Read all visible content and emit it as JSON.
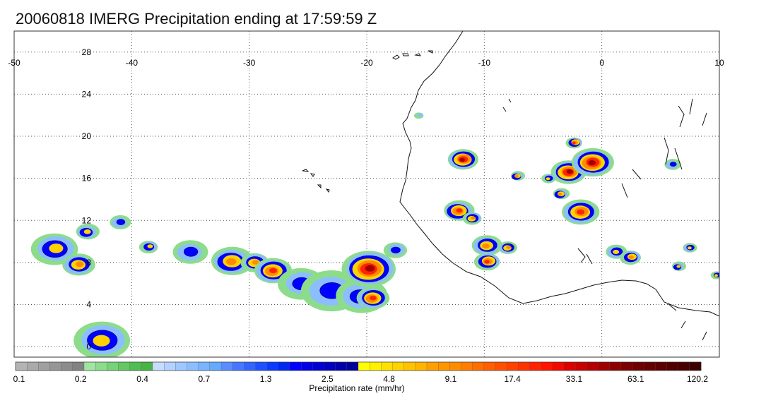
{
  "title": "20060818 IMERG Precipitation ending at 17:59:59 Z",
  "map": {
    "lon_range": [
      -50,
      10
    ],
    "lat_range": [
      -1,
      30
    ],
    "lon_ticks": [
      -50,
      -40,
      -30,
      -20,
      -10,
      0,
      10
    ],
    "lon_tick_labels": [
      "-50",
      "-40",
      "-30",
      "-20",
      "-10",
      "0",
      "10"
    ],
    "lat_ticks": [
      0,
      4,
      8,
      12,
      16,
      20,
      24,
      28
    ],
    "lat_tick_labels": [
      "0",
      "4",
      "8",
      "12",
      "16",
      "20",
      "24",
      "28"
    ],
    "grid": true
  },
  "colorbar": {
    "label": "Precipitation rate (mm/hr)",
    "tick_labels": [
      "0.1",
      "0.2",
      "0.4",
      "0.7",
      "1.3",
      "2.5",
      "4.8",
      "9.1",
      "17.4",
      "33.1",
      "63.1",
      "120.2"
    ],
    "colors": [
      "#b4b4b4",
      "#aaaaaa",
      "#a0a0a0",
      "#969696",
      "#8c8c8c",
      "#828282",
      "#a0e6a0",
      "#8cdc8c",
      "#78d278",
      "#64c864",
      "#50be50",
      "#46b446",
      "#c8dcff",
      "#b4d2ff",
      "#a0c8ff",
      "#8cbeff",
      "#78b4ff",
      "#64aaff",
      "#5a8cff",
      "#4678ff",
      "#3264ff",
      "#1e50ff",
      "#0a3cff",
      "#0028f0",
      "#0000ff",
      "#0000e6",
      "#0000d2",
      "#0000be",
      "#0000aa",
      "#00009b",
      "#ffff00",
      "#fff000",
      "#ffe100",
      "#ffd200",
      "#ffc300",
      "#ffb400",
      "#ffa000",
      "#ff9600",
      "#ff8c00",
      "#ff7d00",
      "#ff6e00",
      "#ff5f00",
      "#ff5000",
      "#ff4100",
      "#ff3200",
      "#ff2300",
      "#ff1400",
      "#f00a00",
      "#dc0000",
      "#c80000",
      "#b40000",
      "#a00000",
      "#8c0000",
      "#7d0000",
      "#6e0000",
      "#640000",
      "#5a0000",
      "#500000",
      "#460000",
      "#3c0000"
    ]
  },
  "storms": [
    {
      "lon": -46.5,
      "lat": 9.3,
      "size": 2.0,
      "peak": 3
    },
    {
      "lon": -44.5,
      "lat": 7.8,
      "size": 1.4,
      "peak": 4
    },
    {
      "lon": -43.8,
      "lat": 10.9,
      "size": 1.0,
      "peak": 3
    },
    {
      "lon": -42.5,
      "lat": 0.6,
      "size": 2.4,
      "peak": 3
    },
    {
      "lon": -41.0,
      "lat": 11.8,
      "size": 0.9,
      "peak": 2
    },
    {
      "lon": -38.5,
      "lat": 9.5,
      "size": 0.8,
      "peak": 3
    },
    {
      "lon": -35.0,
      "lat": 9.0,
      "size": 1.5,
      "peak": 2
    },
    {
      "lon": -31.5,
      "lat": 8.1,
      "size": 1.8,
      "peak": 4
    },
    {
      "lon": -29.5,
      "lat": 8.0,
      "size": 1.2,
      "peak": 4
    },
    {
      "lon": -28.0,
      "lat": 7.2,
      "size": 1.6,
      "peak": 5
    },
    {
      "lon": -25.5,
      "lat": 6.0,
      "size": 2.0,
      "peak": 2
    },
    {
      "lon": -23.0,
      "lat": 5.3,
      "size": 2.6,
      "peak": 2
    },
    {
      "lon": -20.5,
      "lat": 4.8,
      "size": 2.2,
      "peak": 2
    },
    {
      "lon": -19.8,
      "lat": 7.4,
      "size": 2.3,
      "peak": 6
    },
    {
      "lon": -19.5,
      "lat": 4.6,
      "size": 1.4,
      "peak": 5
    },
    {
      "lon": -17.5,
      "lat": 9.2,
      "size": 1.0,
      "peak": 2
    },
    {
      "lon": -11.8,
      "lat": 17.8,
      "size": 1.3,
      "peak": 6
    },
    {
      "lon": -12.2,
      "lat": 12.9,
      "size": 1.3,
      "peak": 5
    },
    {
      "lon": -11.0,
      "lat": 12.2,
      "size": 0.8,
      "peak": 4
    },
    {
      "lon": -9.8,
      "lat": 9.6,
      "size": 1.3,
      "peak": 4
    },
    {
      "lon": -9.7,
      "lat": 8.1,
      "size": 1.1,
      "peak": 5
    },
    {
      "lon": -8.0,
      "lat": 9.4,
      "size": 0.8,
      "peak": 4
    },
    {
      "lon": -7.2,
      "lat": 16.2,
      "size": 0.6,
      "peak": 4
    },
    {
      "lon": -2.8,
      "lat": 16.6,
      "size": 1.5,
      "peak": 6
    },
    {
      "lon": -0.8,
      "lat": 17.5,
      "size": 1.8,
      "peak": 6
    },
    {
      "lon": -2.3,
      "lat": 19.4,
      "size": 0.7,
      "peak": 5
    },
    {
      "lon": -1.8,
      "lat": 12.8,
      "size": 1.6,
      "peak": 5
    },
    {
      "lon": -3.5,
      "lat": 14.5,
      "size": 0.7,
      "peak": 4
    },
    {
      "lon": -4.5,
      "lat": 16.0,
      "size": 0.6,
      "peak": 3
    },
    {
      "lon": 1.2,
      "lat": 9.0,
      "size": 0.9,
      "peak": 3
    },
    {
      "lon": 2.5,
      "lat": 8.5,
      "size": 0.9,
      "peak": 4
    },
    {
      "lon": 7.5,
      "lat": 9.4,
      "size": 0.6,
      "peak": 3
    },
    {
      "lon": 6.5,
      "lat": 7.6,
      "size": 0.6,
      "peak": 3
    },
    {
      "lon": 9.8,
      "lat": 6.8,
      "size": 0.5,
      "peak": 3
    },
    {
      "lon": 6.0,
      "lat": 17.3,
      "size": 0.7,
      "peak": 2
    },
    {
      "lon": -15.5,
      "lat": 22.0,
      "size": 0.4,
      "peak": 1
    }
  ]
}
